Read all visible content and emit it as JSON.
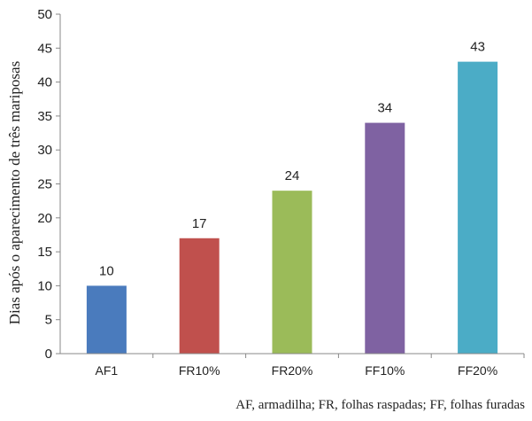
{
  "chart_data": {
    "type": "bar",
    "title": "",
    "xlabel": "",
    "ylabel": "Dias após o aparecimento de três mariposas",
    "ylim": [
      0,
      50
    ],
    "yticks": [
      0,
      5,
      10,
      15,
      20,
      25,
      30,
      35,
      40,
      45,
      50
    ],
    "grid": false,
    "legend": "none",
    "categories": [
      "AF1",
      "FR10%",
      "FR20%",
      "FF10%",
      "FF20%"
    ],
    "values": [
      10,
      17,
      24,
      34,
      43
    ],
    "data_labels": [
      "10",
      "17",
      "24",
      "34",
      "43"
    ],
    "colors": [
      "#4a7bbd",
      "#c0504d",
      "#9bbb59",
      "#7f62a2",
      "#4bacc6"
    ],
    "footnote": "AF, armadilha; FR, folhas raspadas; FF, folhas furadas"
  }
}
